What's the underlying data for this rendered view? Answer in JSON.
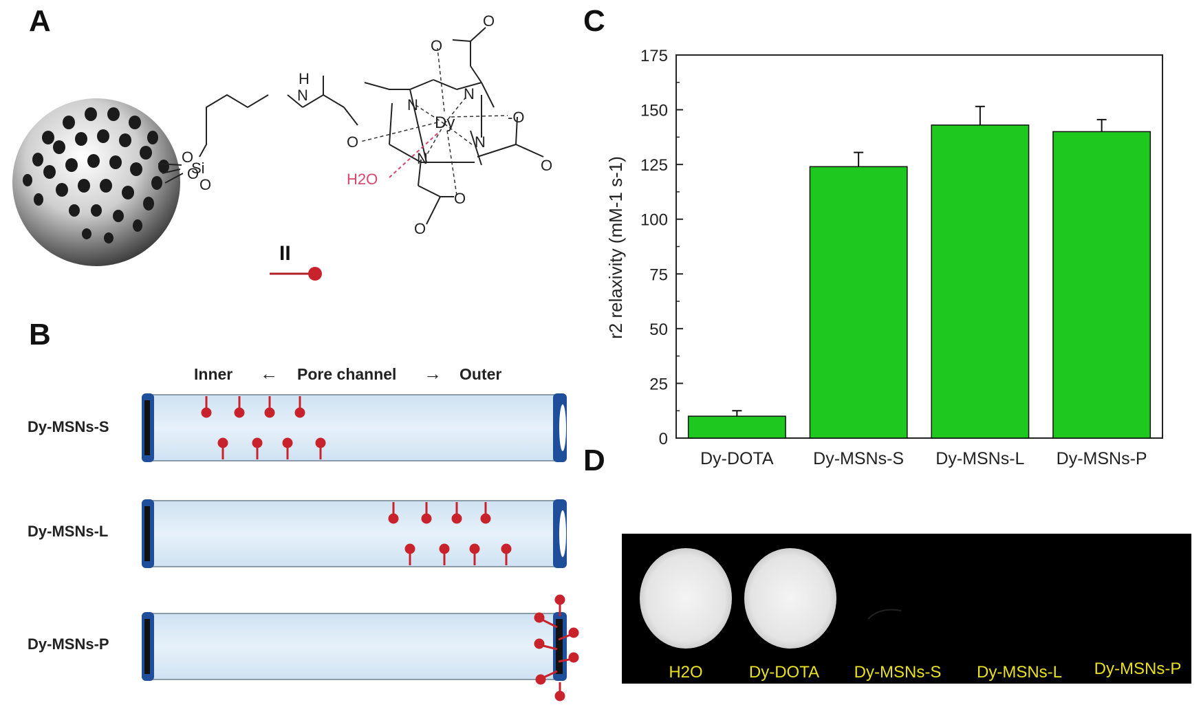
{
  "panels": {
    "a": "A",
    "b": "B",
    "c": "C",
    "d": "D"
  },
  "panel_a": {
    "legend_symbol": "II",
    "atoms": {
      "si": "Si",
      "o": "O",
      "nh_h": "H",
      "nh_n": "N",
      "carbonyl_o": "O",
      "dy": "Dy",
      "n": "N",
      "water": "H2O",
      "anion_o": "-O"
    }
  },
  "panel_b": {
    "header": {
      "inner": "Inner",
      "pore": "Pore channel",
      "outer": "Outer"
    },
    "rows": [
      "Dy-MSNs-S",
      "Dy-MSNs-L",
      "Dy-MSNs-P"
    ]
  },
  "chart_data": {
    "type": "bar",
    "categories": [
      "Dy-DOTA",
      "Dy-MSNs-S",
      "Dy-MSNs-L",
      "Dy-MSNs-P"
    ],
    "values": [
      10,
      124,
      143,
      140
    ],
    "errors": [
      2.5,
      6.5,
      8.5,
      5.5
    ],
    "ylabel": "r2 relaxivity (mM-1 s-1)",
    "ylim": [
      0,
      175
    ],
    "yticks": [
      0,
      25,
      50,
      75,
      100,
      125,
      150,
      175
    ],
    "bar_color": "#1ec81e"
  },
  "panel_d": {
    "labels": [
      "H2O",
      "Dy-DOTA",
      "Dy-MSNs-S",
      "Dy-MSNs-L",
      "Dy-MSNs-P"
    ],
    "label_color": "#e8e020"
  },
  "colors": {
    "red": "#c8232c",
    "blue_cap": "#1f4f9a",
    "tube": "#dbeaf6"
  }
}
